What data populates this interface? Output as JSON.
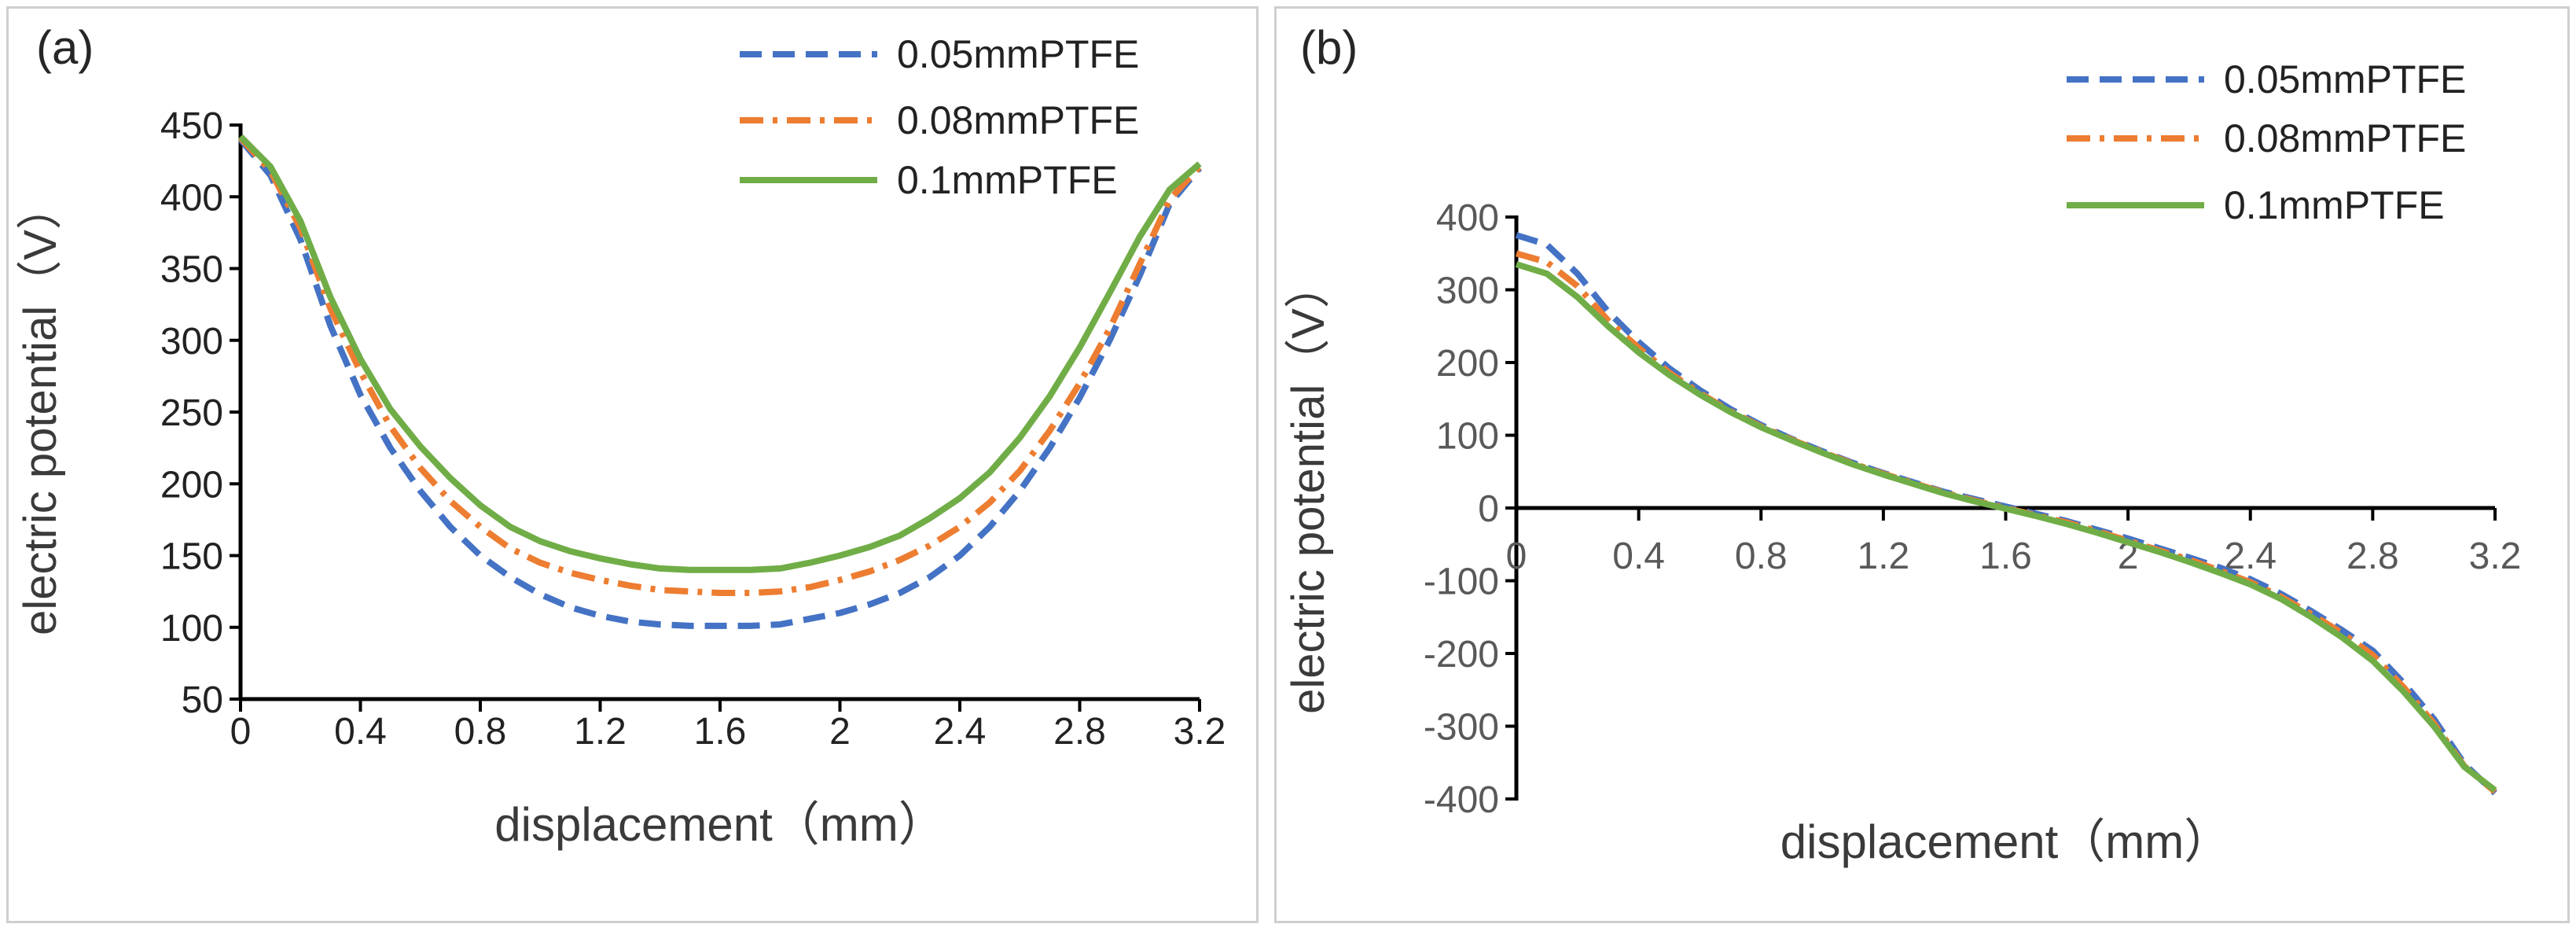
{
  "chart_data": [
    {
      "type": "line",
      "panel_label": "(a)",
      "title": "",
      "xlabel": "displacement（mm）",
      "ylabel": "electric potential（V）",
      "xlim": [
        0,
        3.2
      ],
      "ylim": [
        50,
        450
      ],
      "xticks": [
        "0",
        "0.4",
        "0.8",
        "1.2",
        "1.6",
        "2",
        "2.4",
        "2.8",
        "3.2"
      ],
      "yticks": [
        "50",
        "100",
        "150",
        "200",
        "250",
        "300",
        "350",
        "400",
        "450"
      ],
      "legend_position": "top-right",
      "grid": false,
      "x": [
        0,
        0.1,
        0.2,
        0.3,
        0.4,
        0.5,
        0.6,
        0.7,
        0.8,
        0.9,
        1.0,
        1.1,
        1.2,
        1.3,
        1.4,
        1.5,
        1.6,
        1.7,
        1.8,
        1.9,
        2.0,
        2.1,
        2.2,
        2.3,
        2.4,
        2.5,
        2.6,
        2.7,
        2.8,
        2.9,
        3.0,
        3.1,
        3.2
      ],
      "series": [
        {
          "name": "0.05mmPTFE",
          "color": "#4472c4",
          "dash": "dashed",
          "values": [
            440,
            415,
            370,
            310,
            262,
            225,
            195,
            170,
            150,
            135,
            123,
            114,
            108,
            104,
            102,
            101,
            101,
            101,
            102,
            106,
            110,
            116,
            124,
            135,
            150,
            170,
            195,
            225,
            260,
            300,
            345,
            395,
            420
          ]
        },
        {
          "name": "0.08mmPTFE",
          "color": "#ed7d31",
          "dash": "dashdot",
          "values": [
            441,
            418,
            378,
            322,
            278,
            240,
            211,
            188,
            170,
            155,
            145,
            138,
            133,
            129,
            126,
            125,
            124,
            124,
            125,
            128,
            133,
            139,
            147,
            157,
            170,
            187,
            209,
            237,
            270,
            308,
            353,
            398,
            421
          ]
        },
        {
          "name": "0.1mmPTFE",
          "color": "#70ad47",
          "dash": "solid",
          "values": [
            442,
            421,
            383,
            330,
            287,
            252,
            226,
            204,
            185,
            170,
            160,
            153,
            148,
            144,
            141,
            140,
            140,
            140,
            141,
            145,
            150,
            156,
            164,
            176,
            190,
            208,
            232,
            261,
            295,
            333,
            372,
            405,
            423
          ]
        }
      ]
    },
    {
      "type": "line",
      "panel_label": "(b)",
      "title": "",
      "xlabel": "displacement（mm）",
      "ylabel": "electric potential（V）",
      "xlim": [
        0,
        3.2
      ],
      "ylim": [
        -400,
        400
      ],
      "xticks": [
        "0",
        "0.4",
        "0.8",
        "1.2",
        "1.6",
        "2",
        "2.4",
        "2.8",
        "3.2"
      ],
      "yticks": [
        "-400",
        "-300",
        "-200",
        "-100",
        "0",
        "100",
        "200",
        "300",
        "400"
      ],
      "legend_position": "top-right",
      "grid": false,
      "x": [
        0,
        0.1,
        0.2,
        0.3,
        0.4,
        0.5,
        0.6,
        0.7,
        0.8,
        0.9,
        1.0,
        1.1,
        1.2,
        1.3,
        1.4,
        1.5,
        1.6,
        1.7,
        1.8,
        1.9,
        2.0,
        2.1,
        2.2,
        2.3,
        2.4,
        2.5,
        2.6,
        2.7,
        2.8,
        2.9,
        3.0,
        3.1,
        3.2
      ],
      "series": [
        {
          "name": "0.05mmPTFE",
          "color": "#4472c4",
          "dash": "dashed",
          "values": [
            375,
            362,
            322,
            270,
            228,
            192,
            162,
            136,
            114,
            95,
            78,
            62,
            48,
            35,
            22,
            12,
            2,
            -8,
            -18,
            -30,
            -42,
            -55,
            -68,
            -82,
            -98,
            -118,
            -142,
            -168,
            -196,
            -240,
            -290,
            -352,
            -392
          ]
        },
        {
          "name": "0.08mmPTFE",
          "color": "#ed7d31",
          "dash": "dashdot",
          "values": [
            350,
            338,
            305,
            258,
            220,
            186,
            158,
            133,
            112,
            94,
            77,
            61,
            47,
            34,
            21,
            10,
            0,
            -10,
            -20,
            -32,
            -45,
            -58,
            -71,
            -86,
            -102,
            -122,
            -146,
            -172,
            -202,
            -246,
            -296,
            -355,
            -390
          ]
        },
        {
          "name": "0.1mmPTFE",
          "color": "#70ad47",
          "dash": "solid",
          "values": [
            335,
            322,
            290,
            250,
            214,
            183,
            156,
            132,
            111,
            93,
            76,
            60,
            46,
            33,
            20,
            9,
            -1,
            -11,
            -22,
            -34,
            -47,
            -60,
            -74,
            -89,
            -105,
            -125,
            -150,
            -178,
            -210,
            -252,
            -300,
            -356,
            -388
          ]
        }
      ]
    }
  ]
}
